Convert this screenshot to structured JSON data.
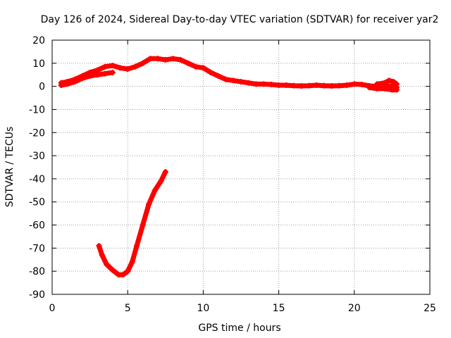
{
  "chart_data": {
    "type": "scatter",
    "title": "Day 126 of 2024, Sidereal Day-to-day VTEC variation (SDTVAR) for receiver yar2",
    "xlabel": "GPS time / hours",
    "ylabel": "SDTVAR / TECUs",
    "xlim": [
      0,
      25
    ],
    "ylim": [
      -90,
      20
    ],
    "xticks": [
      "0",
      "5",
      "10",
      "15",
      "20",
      "25"
    ],
    "yticks": [
      "20",
      "10",
      "0",
      "-10",
      "-20",
      "-30",
      "-40",
      "-50",
      "-60",
      "-70",
      "-80",
      "-90"
    ],
    "grid": true,
    "marker": "+",
    "color": "#ff0000",
    "series": [
      {
        "name": "main-track",
        "x": [
          0.6,
          1.0,
          1.5,
          2.0,
          2.5,
          3.0,
          3.5,
          4.0,
          4.5,
          5.0,
          5.5,
          6.0,
          6.5,
          7.0,
          7.5,
          8.0,
          8.5,
          9.0,
          9.5,
          10.0,
          10.5,
          11.0,
          11.5,
          12.0,
          12.5,
          13.0,
          13.5,
          14.0,
          14.5,
          15.0,
          15.5,
          16.0,
          16.5,
          17.0,
          17.5,
          18.0,
          18.5,
          19.0,
          19.5,
          20.0,
          20.5,
          21.0,
          21.5,
          22.0,
          22.5,
          22.8
        ],
        "y": [
          1.5,
          2.0,
          3.0,
          4.5,
          6.0,
          7.0,
          8.5,
          9.0,
          8.0,
          7.5,
          8.5,
          10.0,
          12.0,
          12.0,
          11.5,
          12.0,
          11.5,
          10.0,
          8.5,
          8.0,
          6.0,
          4.5,
          3.0,
          2.5,
          2.0,
          1.5,
          1.0,
          1.0,
          0.8,
          0.5,
          0.5,
          0.3,
          0.2,
          0.3,
          0.5,
          0.3,
          0.2,
          0.3,
          0.5,
          1.0,
          0.8,
          0.2,
          0.0,
          0.3,
          0.0,
          -0.5
        ]
      },
      {
        "name": "lower-branch",
        "x": [
          0.6,
          1.0,
          1.5,
          2.0,
          2.5,
          3.0,
          3.5,
          4.0
        ],
        "y": [
          0.5,
          1.0,
          2.0,
          3.5,
          4.5,
          5.0,
          5.5,
          6.0
        ]
      },
      {
        "name": "tail-upper",
        "x": [
          21.5,
          22.0,
          22.3,
          22.6,
          22.8
        ],
        "y": [
          1.0,
          1.5,
          2.5,
          2.0,
          1.0
        ]
      },
      {
        "name": "tail-lower",
        "x": [
          21.0,
          21.5,
          22.0,
          22.5,
          22.8
        ],
        "y": [
          -0.5,
          -1.0,
          -1.0,
          -1.5,
          -1.5
        ]
      },
      {
        "name": "deep-dip",
        "x": [
          3.1,
          3.3,
          3.6,
          4.0,
          4.4,
          4.7,
          5.0,
          5.3,
          5.6,
          6.0,
          6.4,
          6.8,
          7.2,
          7.5
        ],
        "y": [
          -69,
          -73,
          -77,
          -79.5,
          -81.5,
          -81.5,
          -80,
          -76,
          -69,
          -60,
          -51,
          -45,
          -41,
          -37
        ]
      }
    ]
  }
}
